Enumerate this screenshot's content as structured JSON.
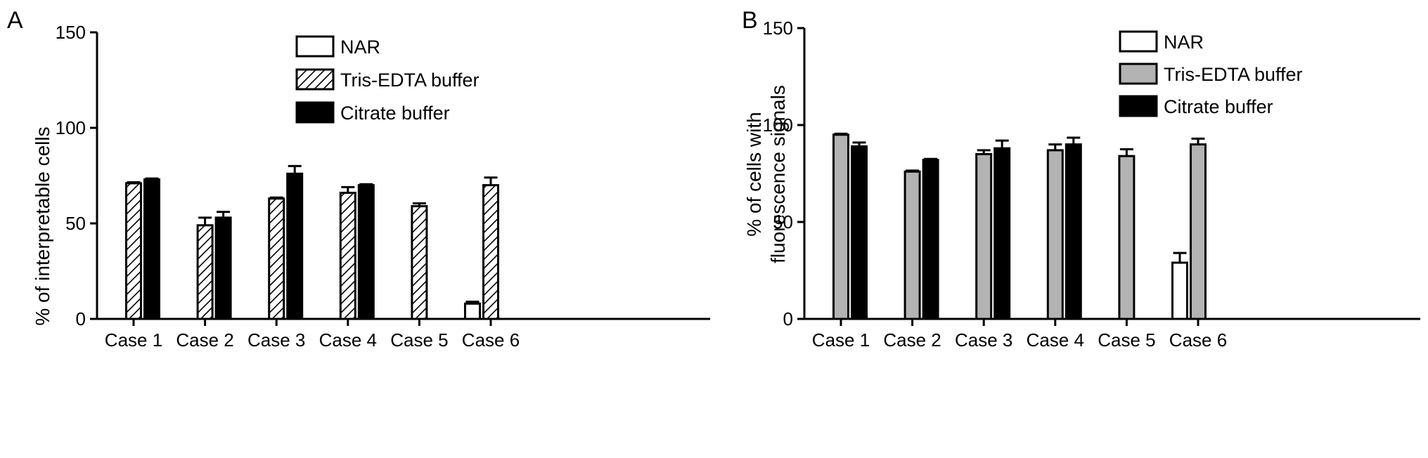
{
  "chart_data": [
    {
      "type": "bar",
      "panel_label": "A",
      "title": "",
      "xlabel": "",
      "ylabel": "% of interpretable cells",
      "ylim": [
        0,
        150
      ],
      "yticks": [
        0,
        50,
        100,
        150
      ],
      "grid": false,
      "legend_position": "top-right",
      "categories": [
        "Case 1",
        "Case 2",
        "Case 3",
        "Case 4",
        "Case 5",
        "Case 6"
      ],
      "series": [
        {
          "name": "NAR",
          "style": "white",
          "values": [
            null,
            null,
            null,
            null,
            null,
            8
          ],
          "errors": [
            null,
            null,
            null,
            null,
            null,
            1
          ]
        },
        {
          "name": "Tris-EDTA buffer",
          "style": "hatched",
          "values": [
            71,
            49,
            63,
            66,
            59,
            70
          ],
          "errors": [
            0.5,
            4,
            0.5,
            3,
            1.5,
            4
          ]
        },
        {
          "name": "Citrate buffer",
          "style": "black",
          "values": [
            73,
            53,
            76,
            70,
            null,
            null
          ],
          "errors": [
            0.5,
            3,
            4,
            0.5,
            null,
            null
          ]
        }
      ]
    },
    {
      "type": "bar",
      "panel_label": "B",
      "title": "",
      "xlabel": "",
      "ylabel": "% of cells with fluorescence signals",
      "ylabel_lines": [
        "% of cells with",
        "fluorescence signals"
      ],
      "ylim": [
        0,
        150
      ],
      "yticks": [
        0,
        50,
        100,
        150
      ],
      "grid": false,
      "legend_position": "top-right",
      "categories": [
        "Case 1",
        "Case 2",
        "Case 3",
        "Case 4",
        "Case 5",
        "Case 6"
      ],
      "series": [
        {
          "name": "NAR",
          "style": "white",
          "values": [
            null,
            null,
            null,
            null,
            null,
            29
          ],
          "errors": [
            null,
            null,
            null,
            null,
            null,
            5
          ]
        },
        {
          "name": "Tris-EDTA buffer",
          "style": "gray",
          "values": [
            95,
            76,
            85,
            87,
            84,
            90
          ],
          "errors": [
            0.5,
            0.5,
            2,
            3,
            3.5,
            3
          ]
        },
        {
          "name": "Citrate buffer",
          "style": "black",
          "values": [
            89,
            82,
            88,
            90,
            null,
            null
          ],
          "errors": [
            2,
            0.5,
            4,
            3.5,
            null,
            null
          ]
        }
      ]
    }
  ],
  "colors": {
    "axis": "#000000",
    "white_fill": "#ffffff",
    "gray_fill": "#b3b3b3",
    "black_fill": "#000000"
  }
}
